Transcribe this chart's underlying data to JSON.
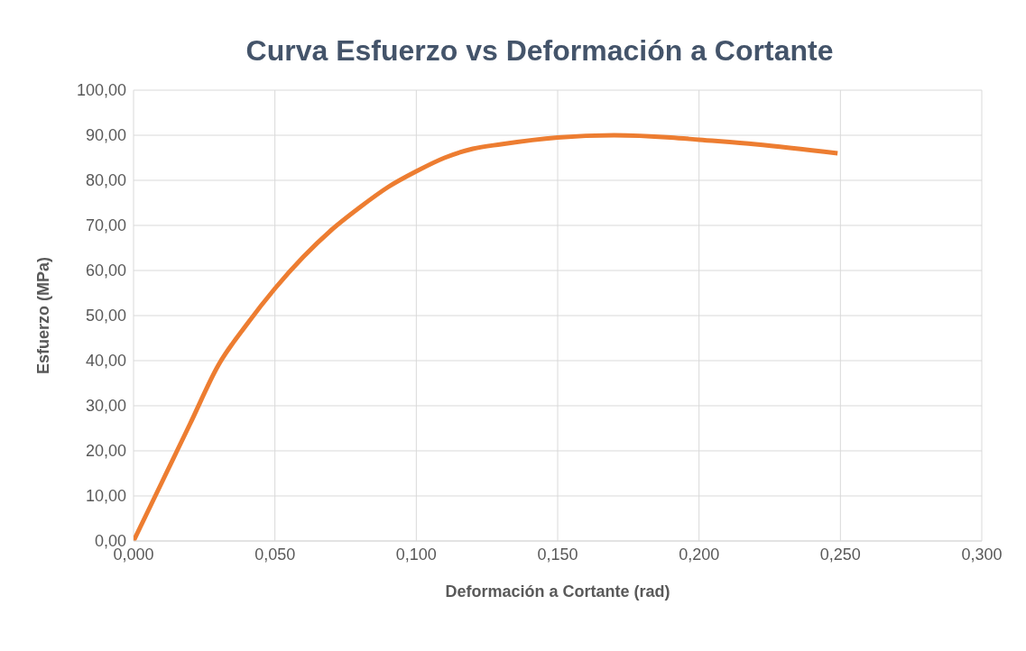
{
  "chart_data": {
    "type": "line",
    "title": "Curva Esfuerzo vs Deformación a Cortante",
    "xlabel": "Deformación a Cortante (rad)",
    "ylabel": "Esfuerzo (MPa)",
    "x": [
      0,
      0.01,
      0.02,
      0.03,
      0.04,
      0.05,
      0.06,
      0.07,
      0.08,
      0.09,
      0.1,
      0.11,
      0.12,
      0.13,
      0.15,
      0.17,
      0.19,
      0.2,
      0.22,
      0.249
    ],
    "series": [
      {
        "color": "#ed7d31",
        "values": [
          0,
          13,
          26,
          39,
          48,
          56,
          63,
          69,
          74,
          78.5,
          82,
          85,
          87,
          88,
          89.5,
          90,
          89.5,
          89,
          88,
          86
        ]
      }
    ],
    "xlim": [
      0,
      0.3
    ],
    "xticks": [
      {
        "value": 0,
        "label": "0,000"
      },
      {
        "value": 0.05,
        "label": "0,050"
      },
      {
        "value": 0.1,
        "label": "0,100"
      },
      {
        "value": 0.15,
        "label": "0,150"
      },
      {
        "value": 0.2,
        "label": "0,200"
      },
      {
        "value": 0.25,
        "label": "0,250"
      },
      {
        "value": 0.3,
        "label": "0,300"
      }
    ],
    "ylim": [
      0,
      100
    ],
    "yticks": [
      {
        "value": 0,
        "label": "0,00"
      },
      {
        "value": 10,
        "label": "10,00"
      },
      {
        "value": 20,
        "label": "20,00"
      },
      {
        "value": 30,
        "label": "30,00"
      },
      {
        "value": 40,
        "label": "40,00"
      },
      {
        "value": 50,
        "label": "50,00"
      },
      {
        "value": 60,
        "label": "60,00"
      },
      {
        "value": 70,
        "label": "70,00"
      },
      {
        "value": 80,
        "label": "80,00"
      },
      {
        "value": 90,
        "label": "90,00"
      },
      {
        "value": 100,
        "label": "100,00"
      }
    ],
    "grid": true,
    "marker": "none",
    "line_style": "solid"
  }
}
